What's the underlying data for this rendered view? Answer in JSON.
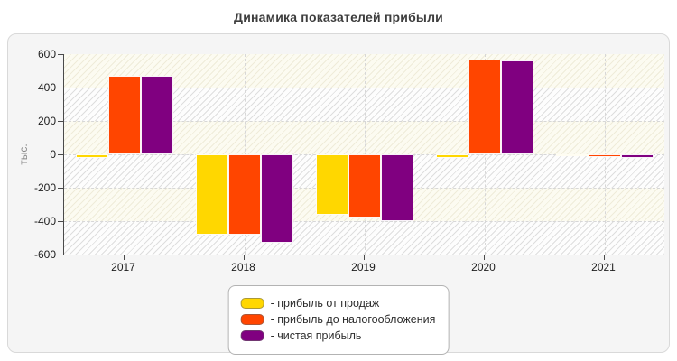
{
  "page": {
    "title": "Динамика показателей прибыли"
  },
  "chart_data": {
    "type": "bar",
    "title": "Динамика показателей прибыли",
    "xlabel": "",
    "ylabel": "тыс.",
    "categories": [
      "2017",
      "2018",
      "2019",
      "2020",
      "2021"
    ],
    "series": [
      {
        "name": "- прибыль от продаж",
        "color": "#FFD700",
        "values": [
          -20,
          -480,
          -360,
          -20,
          -10
        ]
      },
      {
        "name": "- прибыль до налогообложения",
        "color": "#FF4500",
        "values": [
          470,
          -480,
          -380,
          570,
          -15
        ]
      },
      {
        "name": "- чистая прибыль",
        "color": "#800080",
        "values": [
          470,
          -530,
          -400,
          560,
          -20
        ]
      }
    ],
    "ylim": [
      -600,
      600
    ],
    "ytick_step": 200,
    "yticks": [
      "600",
      "400",
      "200",
      "0",
      "-200",
      "-400",
      "-600"
    ],
    "grid": true,
    "grid_style": "dashed",
    "background_bands": "alternating-hatch",
    "legend_position": "bottom-center"
  },
  "colors": {
    "card_background": "#f5f5f5",
    "plot_band_cream": "#fcfbf1",
    "axis": "#3a3a3a",
    "grid": "#d7d7d7",
    "title_text": "#3d3d3d",
    "tick_text": "#1c1c1c",
    "ylabel_text": "#8a8a8a"
  }
}
